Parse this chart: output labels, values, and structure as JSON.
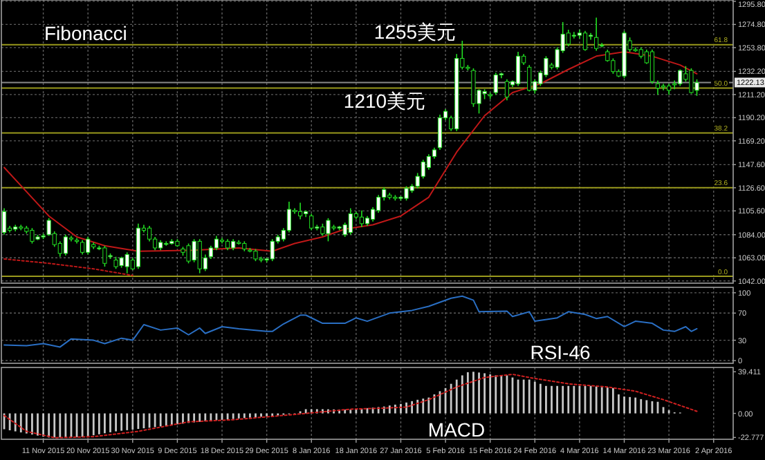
{
  "chart_data": [
    {
      "type": "candlestick",
      "color": "#22e022",
      "annotations": [
        "Fibonacci",
        {
          "text": "1255美元",
          "y": 1262
        },
        "1210美元",
        {
          "text": "61.8",
          "y": 1256.4
        },
        {
          "text": "50.0",
          "y": 1217.1
        },
        {
          "text": "38.2",
          "y": 1176.4
        },
        {
          "text": "23.6",
          "y": 1126.6
        },
        {
          "text": "0.0",
          "y": 1046.2
        }
      ],
      "categories": [
        null,
        null,
        null,
        null,
        null,
        null,
        null,
        null,
        null,
        null,
        null,
        null,
        null,
        null,
        null,
        null,
        null,
        null,
        null,
        null,
        null,
        null,
        null,
        null,
        null,
        null,
        null,
        null,
        null,
        null,
        null,
        null,
        null,
        null,
        null,
        null,
        null,
        null,
        null,
        null,
        null,
        null,
        null,
        null,
        null,
        null,
        null,
        null,
        null,
        null,
        null,
        null,
        null,
        null,
        null,
        null,
        null,
        null,
        null,
        null,
        null,
        null,
        null,
        null,
        null,
        null,
        null,
        null,
        null,
        null,
        null,
        null,
        null,
        null,
        null,
        null,
        null,
        null,
        null,
        null,
        null,
        null,
        null,
        null,
        null,
        null,
        null,
        null,
        null,
        null,
        null,
        null,
        null,
        null,
        null,
        null,
        null,
        null,
        null,
        null,
        null,
        null,
        null,
        null,
        null,
        null,
        null,
        null,
        null,
        null,
        null,
        null,
        null,
        null,
        null,
        null,
        null,
        null,
        null,
        null,
        null,
        null,
        null,
        null,
        null,
        null,
        null,
        null,
        null,
        null,
        null
      ],
      "ohlc": [
        [
          1086,
          1108,
          1084,
          1105
        ],
        [
          1090,
          1092,
          1086,
          1088
        ],
        [
          1089,
          1093,
          1087,
          1091
        ],
        [
          1091,
          1093,
          1088,
          1090
        ],
        [
          1090,
          1092,
          1085,
          1087
        ],
        [
          1088,
          1090,
          1076,
          1078
        ],
        [
          1080,
          1084,
          1079,
          1082
        ],
        [
          1082,
          1085,
          1080,
          1083
        ],
        [
          1084,
          1099,
          1083,
          1097
        ],
        [
          1085,
          1087,
          1073,
          1075
        ],
        [
          1076,
          1078,
          1064,
          1067
        ],
        [
          1067,
          1084,
          1065,
          1082
        ],
        [
          1081,
          1083,
          1078,
          1080
        ],
        [
          1079,
          1081,
          1076,
          1078
        ],
        [
          1077,
          1079,
          1066,
          1068
        ],
        [
          1068,
          1082,
          1066,
          1080
        ],
        [
          1075,
          1077,
          1071,
          1073
        ],
        [
          1072,
          1074,
          1070,
          1072
        ],
        [
          1072,
          1074,
          1055,
          1058
        ],
        [
          1064,
          1067,
          1062,
          1065
        ],
        [
          1061,
          1064,
          1053,
          1055
        ],
        [
          1056,
          1064,
          1054,
          1063
        ],
        [
          1055,
          1068,
          1049,
          1066
        ],
        [
          1061,
          1063,
          1052,
          1053
        ],
        [
          1055,
          1094,
          1053,
          1090
        ],
        [
          1090,
          1093,
          1086,
          1088
        ],
        [
          1090,
          1092,
          1078,
          1080
        ],
        [
          1080,
          1082,
          1070,
          1072
        ],
        [
          1072,
          1079,
          1070,
          1077
        ],
        [
          1076,
          1078,
          1074,
          1076
        ],
        [
          1076,
          1080,
          1075,
          1078
        ],
        [
          1078,
          1080,
          1073,
          1074
        ],
        [
          1071,
          1073,
          1065,
          1068
        ],
        [
          1074,
          1076,
          1058,
          1060
        ],
        [
          1061,
          1080,
          1059,
          1078
        ],
        [
          1078,
          1080,
          1049,
          1053
        ],
        [
          1053,
          1066,
          1051,
          1063
        ],
        [
          1064,
          1074,
          1062,
          1072
        ],
        [
          1072,
          1083,
          1070,
          1080
        ],
        [
          1079,
          1081,
          1076,
          1078
        ],
        [
          1078,
          1080,
          1070,
          1072
        ],
        [
          1072,
          1080,
          1070,
          1078
        ],
        [
          1077,
          1079,
          1075,
          1076
        ],
        [
          1076,
          1078,
          1069,
          1071
        ],
        [
          1070,
          1072,
          1068,
          1069
        ],
        [
          1069,
          1071,
          1060,
          1062
        ],
        [
          1062,
          1064,
          1059,
          1061
        ],
        [
          1061,
          1063,
          1059,
          1062
        ],
        [
          1062,
          1080,
          1060,
          1078
        ],
        [
          1078,
          1084,
          1076,
          1082
        ],
        [
          1080,
          1090,
          1078,
          1088
        ],
        [
          1088,
          1114,
          1086,
          1107
        ],
        [
          1106,
          1108,
          1103,
          1105
        ],
        [
          1105,
          1113,
          1098,
          1101
        ],
        [
          1103,
          1106,
          1100,
          1105
        ],
        [
          1101,
          1103,
          1088,
          1090
        ],
        [
          1090,
          1093,
          1088,
          1091
        ],
        [
          1091,
          1094,
          1083,
          1085
        ],
        [
          1085,
          1099,
          1078,
          1097
        ],
        [
          1091,
          1093,
          1088,
          1090
        ],
        [
          1090,
          1092,
          1088,
          1091
        ],
        [
          1084,
          1095,
          1082,
          1093
        ],
        [
          1086,
          1108,
          1084,
          1103
        ],
        [
          1103,
          1105,
          1098,
          1100
        ],
        [
          1100,
          1106,
          1091,
          1094
        ],
        [
          1094,
          1101,
          1092,
          1099
        ],
        [
          1098,
          1109,
          1096,
          1107
        ],
        [
          1106,
          1120,
          1104,
          1118
        ],
        [
          1118,
          1127,
          1115,
          1125
        ],
        [
          1120,
          1122,
          1116,
          1118
        ],
        [
          1118,
          1120,
          1115,
          1117
        ],
        [
          1117,
          1119,
          1115,
          1118
        ],
        [
          1117,
          1128,
          1115,
          1126
        ],
        [
          1124,
          1130,
          1122,
          1128
        ],
        [
          1128,
          1140,
          1126,
          1137
        ],
        [
          1137,
          1152,
          1135,
          1150
        ],
        [
          1145,
          1157,
          1143,
          1155
        ],
        [
          1155,
          1163,
          1153,
          1161
        ],
        [
          1163,
          1193,
          1161,
          1190
        ],
        [
          1190,
          1198,
          1188,
          1196
        ],
        [
          1190,
          1192,
          1178,
          1180
        ],
        [
          1180,
          1248,
          1178,
          1244
        ],
        [
          1244,
          1260,
          1234,
          1236
        ],
        [
          1236,
          1238,
          1233,
          1235
        ],
        [
          1233,
          1235,
          1200,
          1203
        ],
        [
          1203,
          1216,
          1194,
          1215
        ],
        [
          1212,
          1216,
          1207,
          1214
        ],
        [
          1211,
          1213,
          1207,
          1210
        ],
        [
          1213,
          1231,
          1211,
          1229
        ],
        [
          1229,
          1231,
          1226,
          1230
        ],
        [
          1223,
          1225,
          1206,
          1209
        ],
        [
          1220,
          1224,
          1218,
          1223
        ],
        [
          1221,
          1250,
          1219,
          1246
        ],
        [
          1246,
          1248,
          1238,
          1240
        ],
        [
          1236,
          1238,
          1214,
          1215
        ],
        [
          1215,
          1225,
          1212,
          1223
        ],
        [
          1221,
          1233,
          1219,
          1231
        ],
        [
          1229,
          1246,
          1227,
          1244
        ],
        [
          1238,
          1240,
          1234,
          1236
        ],
        [
          1236,
          1254,
          1234,
          1252
        ],
        [
          1251,
          1277,
          1249,
          1266
        ],
        [
          1267,
          1270,
          1255,
          1257
        ],
        [
          1265,
          1268,
          1262,
          1265
        ],
        [
          1265,
          1270,
          1262,
          1267
        ],
        [
          1267,
          1269,
          1251,
          1252
        ],
        [
          1264,
          1267,
          1261,
          1265
        ],
        [
          1263,
          1281,
          1251,
          1253
        ],
        [
          1256,
          1258,
          1254,
          1256
        ],
        [
          1250,
          1252,
          1241,
          1242
        ],
        [
          1242,
          1244,
          1230,
          1232
        ],
        [
          1232,
          1234,
          1227,
          1228
        ],
        [
          1228,
          1269,
          1226,
          1267
        ],
        [
          1260,
          1263,
          1250,
          1252
        ],
        [
          1252,
          1254,
          1250,
          1251
        ],
        [
          1252,
          1254,
          1244,
          1246
        ],
        [
          1250,
          1252,
          1239,
          1240
        ],
        [
          1250,
          1252,
          1221,
          1223
        ],
        [
          1221,
          1224,
          1211,
          1217
        ],
        [
          1219,
          1221,
          1215,
          1218
        ],
        [
          1219,
          1221,
          1211,
          1215
        ],
        [
          1221,
          1224,
          1216,
          1220
        ],
        [
          1221,
          1234,
          1219,
          1233
        ],
        [
          1230,
          1237,
          1223,
          1225
        ],
        [
          1233,
          1235,
          1212,
          1213
        ],
        [
          1215,
          1225,
          1210,
          1222
        ],
        null,
        null,
        null,
        null,
        null,
        null
      ],
      "series": [
        {
          "type": "line",
          "color": "#c01818",
          "values": [
            1145,
            null,
            null,
            null,
            null,
            null,
            null,
            null,
            1101,
            null,
            null,
            null,
            null,
            1082,
            null,
            null,
            null,
            null,
            1074,
            null,
            null,
            null,
            null,
            null,
            1069,
            null,
            null,
            null,
            null,
            null,
            null,
            null,
            null,
            null,
            1070,
            null,
            null,
            null,
            null,
            null,
            null,
            null,
            1072,
            null,
            null,
            null,
            null,
            null,
            1069,
            null,
            null,
            null,
            1076,
            null,
            null,
            null,
            null,
            1082,
            null,
            null,
            null,
            1089,
            null,
            null,
            null,
            null,
            1093,
            null,
            null,
            null,
            null,
            1101,
            null,
            null,
            null,
            null,
            1118,
            null,
            null,
            null,
            null,
            1159,
            null,
            null,
            null,
            null,
            1192,
            null,
            null,
            null,
            null,
            1213,
            null,
            null,
            null,
            null,
            1221,
            null,
            null,
            null,
            null,
            1234,
            null,
            null,
            null,
            null,
            1246,
            null,
            null,
            null,
            null,
            1250,
            null,
            null,
            null,
            null,
            1246,
            null,
            null,
            null,
            null,
            1238,
            null,
            null,
            1230,
            null,
            null,
            null,
            null,
            null,
            null
          ]
        },
        {
          "type": "line",
          "color": "#c01818",
          "line_style": "dotted",
          "values": [
            1062,
            null,
            null,
            null,
            null,
            null,
            null,
            null,
            1058,
            null,
            null,
            null,
            null,
            null,
            null,
            null,
            1053,
            null,
            null,
            null,
            null,
            null,
            null,
            1047,
            null,
            null,
            null,
            null,
            null,
            null,
            null,
            null,
            null,
            null,
            null,
            null,
            null,
            null,
            null,
            null,
            null,
            null,
            null,
            null,
            null,
            null,
            null,
            null,
            null,
            null,
            null,
            null,
            null,
            null,
            null,
            null,
            null,
            null,
            null,
            null,
            null,
            null,
            null,
            null,
            null,
            null,
            null,
            null,
            null,
            null,
            null,
            null,
            null,
            null,
            null,
            null,
            null,
            null,
            null,
            null,
            null,
            null,
            null,
            null,
            null,
            null,
            null,
            null,
            null,
            null,
            null,
            null,
            null,
            null,
            null,
            null,
            null,
            null,
            null,
            null,
            null,
            null,
            null,
            null,
            null,
            null,
            null,
            null,
            null,
            null,
            null,
            null,
            null,
            null,
            null,
            null,
            null,
            null,
            null,
            null,
            null,
            null,
            null,
            null,
            null,
            null,
            null,
            null,
            null,
            null,
            null
          ]
        }
      ],
      "ref_lines": [
        {
          "axis": "y",
          "value": 1256.4,
          "color": "#9a9a1c"
        },
        {
          "axis": "y",
          "value": 1217.1,
          "color": "#9a9a1c"
        },
        {
          "axis": "y",
          "value": 1176.4,
          "color": "#9a9a1c"
        },
        {
          "axis": "y",
          "value": 1126.6,
          "color": "#9a9a1c"
        },
        {
          "axis": "y",
          "value": 1046.2,
          "color": "#9a9a1c"
        },
        {
          "axis": "y",
          "value": 1222.13,
          "label": "1222.13",
          "color": "#8a8a8a"
        }
      ],
      "ylim": [
        1040,
        1297
      ],
      "yticks": [
        {
          "value": 1295.8,
          "label": "1295.80"
        },
        {
          "value": 1274.8,
          "label": "1274.80"
        },
        {
          "value": 1253.8,
          "label": "1253.80"
        },
        {
          "value": 1232.2,
          "label": "1232.20"
        },
        {
          "value": 1211.2,
          "label": "1211.20"
        },
        {
          "value": 1190.2,
          "label": "1190.20"
        },
        {
          "value": 1169.2,
          "label": "1169.20"
        },
        {
          "value": 1147.6,
          "label": "1147.60"
        },
        {
          "value": 1126.6,
          "label": "1126.60"
        },
        {
          "value": 1105.6,
          "label": "1105.60"
        },
        {
          "value": 1084,
          "label": "1084.00"
        },
        {
          "value": 1063,
          "label": "1063.00"
        },
        {
          "value": 1042,
          "label": "1042.00"
        }
      ],
      "tick_labels": "y",
      "grid": true
    },
    {
      "type": "line",
      "annotations": [
        "RSI-46"
      ],
      "categories": [
        null,
        null,
        null,
        null,
        null,
        null,
        null,
        null,
        null,
        null,
        null,
        null,
        null,
        null,
        null,
        null,
        null,
        null,
        null,
        null,
        null,
        null,
        null,
        null,
        null,
        null,
        null,
        null,
        null,
        null,
        null,
        null,
        null,
        null,
        null,
        null,
        null,
        null,
        null,
        null,
        null,
        null,
        null,
        null,
        null,
        null,
        null,
        null,
        null,
        null,
        null,
        null,
        null,
        null,
        null,
        null,
        null,
        null,
        null,
        null,
        null,
        null,
        null,
        null,
        null,
        null,
        null,
        null,
        null,
        null,
        null,
        null,
        null,
        null,
        null,
        null,
        null,
        null,
        null,
        null,
        null,
        null,
        null,
        null,
        null,
        null,
        null,
        null,
        null,
        null,
        null,
        null,
        null,
        null,
        null,
        null,
        null,
        null,
        null,
        null,
        null,
        null,
        null,
        null,
        null,
        null,
        null,
        null,
        null,
        null,
        null,
        null,
        null,
        null,
        null,
        null,
        null,
        null,
        null,
        null,
        null,
        null,
        null,
        null,
        null,
        null,
        null,
        null,
        null,
        null,
        null
      ],
      "series": [
        {
          "color": "#2a6fc4",
          "values": [
            23,
            null,
            null,
            null,
            22,
            null,
            null,
            25,
            null,
            null,
            20,
            null,
            32,
            null,
            null,
            null,
            30,
            null,
            25,
            null,
            null,
            33,
            null,
            30,
            null,
            53,
            null,
            null,
            45,
            null,
            null,
            48,
            null,
            38,
            null,
            48,
            40,
            null,
            null,
            50,
            null,
            null,
            47,
            null,
            null,
            null,
            null,
            43,
            43,
            null,
            54,
            null,
            null,
            67,
            67,
            null,
            null,
            55,
            null,
            55,
            null,
            55,
            null,
            63,
            null,
            58,
            61,
            null,
            null,
            70,
            null,
            null,
            null,
            74,
            null,
            null,
            80,
            null,
            null,
            null,
            92,
            null,
            95,
            null,
            89,
            72,
            null,
            null,
            null,
            null,
            73,
            65,
            null,
            null,
            72,
            58,
            null,
            null,
            null,
            63,
            null,
            72,
            null,
            null,
            68,
            null,
            62,
            null,
            65,
            null,
            null,
            50,
            null,
            58,
            null,
            null,
            55,
            null,
            45,
            null,
            43,
            null,
            50,
            43,
            47,
            null,
            null,
            null,
            null,
            null,
            null
          ]
        }
      ],
      "ylim": [
        -4,
        108
      ],
      "yticks": [
        100,
        70,
        30,
        0
      ],
      "tick_labels": "y",
      "grid": true
    },
    {
      "type": "bar",
      "annotations": [
        "MACD"
      ],
      "categories": [
        null,
        null,
        null,
        null,
        null,
        null,
        null,
        "11 Nov 2015",
        null,
        null,
        null,
        null,
        null,
        null,
        null,
        "20 Nov 2015",
        null,
        null,
        null,
        null,
        null,
        null,
        null,
        "30 Nov 2015",
        null,
        null,
        null,
        null,
        null,
        null,
        null,
        "9 Dec 2015",
        null,
        null,
        null,
        null,
        null,
        null,
        null,
        "18 Dec 2015",
        null,
        null,
        null,
        null,
        null,
        null,
        null,
        "29 Dec 2015",
        null,
        null,
        null,
        null,
        null,
        null,
        null,
        "8 Jan 2016",
        null,
        null,
        null,
        null,
        null,
        null,
        null,
        "18 Jan 2016",
        null,
        null,
        null,
        null,
        null,
        null,
        null,
        "27 Jan 2016",
        null,
        null,
        null,
        null,
        null,
        null,
        null,
        "5 Feb 2016",
        null,
        null,
        null,
        null,
        null,
        null,
        null,
        "15 Feb 2016",
        null,
        null,
        null,
        null,
        null,
        null,
        null,
        "24 Feb 2016",
        null,
        null,
        null,
        null,
        null,
        null,
        null,
        "4 Mar 2016",
        null,
        null,
        null,
        null,
        null,
        null,
        null,
        "14 Mar 2016",
        null,
        null,
        null,
        null,
        null,
        null,
        null,
        "23 Mar 2016",
        null,
        null,
        null,
        null,
        null,
        null,
        null,
        "2 Apr 2016",
        null,
        null,
        null
      ],
      "series": [
        {
          "color": "#c8c8c8",
          "values": [
            -15,
            -16,
            -17,
            -18,
            -19,
            -20,
            -21,
            -22,
            -22.8,
            -22.8,
            -22.8,
            -22.7,
            -22.7,
            -22.6,
            -22.5,
            -21.6,
            -20.7,
            -19.8,
            -18.8,
            -17.9,
            -17,
            -16.4,
            -15.9,
            -15.3,
            -14.7,
            -14.1,
            -13.6,
            -13,
            -12.3,
            -11.7,
            -11,
            -10.3,
            -9.7,
            -9,
            -8.5,
            -8,
            -7.5,
            -7,
            -6.5,
            -6.1,
            -5.7,
            -5.3,
            -4.8,
            -4.4,
            -4,
            -3.6,
            -3.2,
            -2.8,
            -2.4,
            -2,
            -1.3,
            -0.7,
            0,
            2,
            4,
            4,
            4,
            4,
            3.9,
            3.8,
            3.7,
            3.6,
            3.5,
            4,
            4.5,
            5,
            5.5,
            6,
            6.5,
            7.5,
            8.3,
            9,
            10.3,
            11.6,
            12.9,
            14,
            15,
            18,
            21,
            24,
            28,
            32,
            36,
            39,
            39.411,
            38.7,
            38,
            37,
            36,
            36,
            36,
            34,
            32,
            32,
            32,
            30,
            28,
            26,
            26,
            26,
            26,
            26,
            26,
            26,
            26,
            26,
            25.5,
            25,
            24.5,
            24,
            18,
            16,
            15.5,
            15,
            13.5,
            12.5,
            11.5,
            11,
            6,
            3,
            1,
            0.8,
            null,
            null,
            null,
            null,
            null,
            null,
            null,
            null,
            null
          ]
        },
        {
          "type": "line",
          "color": "#d02020",
          "line_style": "dotted",
          "values": [
            -2,
            null,
            null,
            null,
            -17,
            null,
            null,
            null,
            null,
            -23,
            null,
            null,
            null,
            null,
            null,
            null,
            -22,
            null,
            null,
            null,
            null,
            null,
            null,
            null,
            -17,
            null,
            null,
            null,
            null,
            null,
            null,
            null,
            null,
            -8,
            null,
            null,
            null,
            null,
            null,
            null,
            null,
            -6,
            null,
            null,
            null,
            null,
            null,
            null,
            null,
            null,
            null,
            null,
            -1,
            null,
            null,
            null,
            null,
            null,
            null,
            null,
            null,
            null,
            4,
            null,
            null,
            null,
            null,
            null,
            5,
            null,
            null,
            null,
            6,
            null,
            null,
            null,
            13,
            null,
            null,
            null,
            null,
            25,
            null,
            null,
            null,
            null,
            34,
            null,
            null,
            null,
            null,
            37,
            null,
            null,
            null,
            33,
            null,
            null,
            null,
            null,
            null,
            28,
            null,
            null,
            null,
            null,
            null,
            null,
            25,
            null,
            null,
            null,
            null,
            21,
            null,
            null,
            null,
            null,
            13,
            null,
            null,
            null,
            null,
            null,
            2,
            null,
            null,
            null,
            null,
            null,
            null
          ]
        }
      ],
      "ylim": [
        -24.5,
        43.5
      ],
      "yticks": [
        {
          "value": 39.411,
          "label": "39.411"
        },
        {
          "value": 0,
          "label": "0.00"
        },
        {
          "value": -22.777,
          "label": "-22.777"
        }
      ],
      "grid": "x"
    }
  ]
}
